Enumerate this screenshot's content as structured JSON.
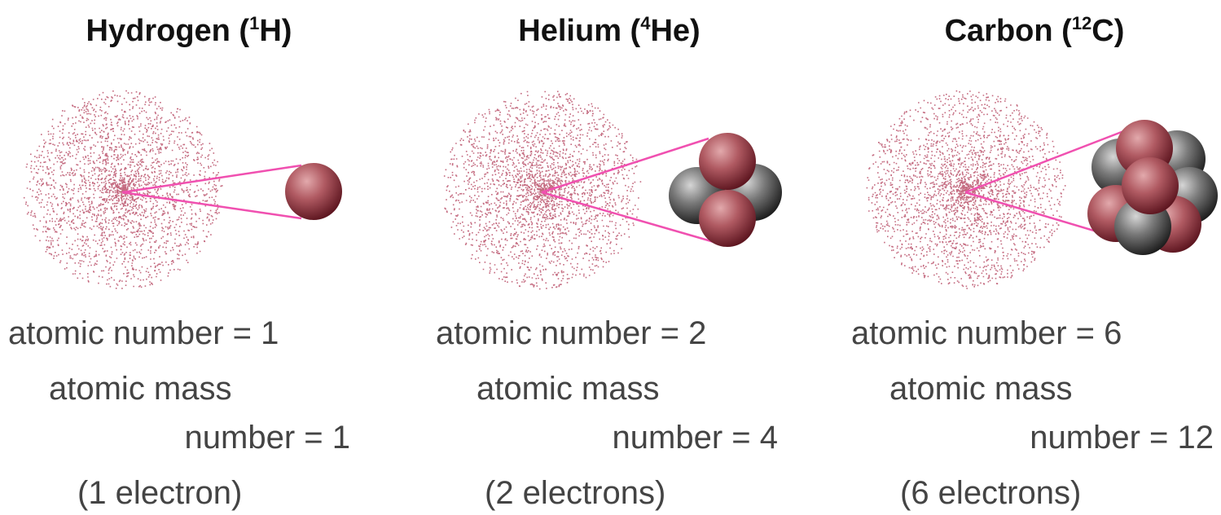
{
  "atoms": [
    {
      "title": {
        "name": "Hydrogen (",
        "mass": "1",
        "symbol": "H)"
      },
      "atomic_number": "atomic number = 1",
      "mass_label": "atomic mass",
      "mass_number": "number = 1",
      "electrons": "(1 electron)"
    },
    {
      "title": {
        "name": "Helium (",
        "mass": "4",
        "symbol": "He)"
      },
      "atomic_number": "atomic number = 2",
      "mass_label": "atomic mass",
      "mass_number": "number = 4",
      "electrons": "(2 electrons)"
    },
    {
      "title": {
        "name": "Carbon (",
        "mass": "12",
        "symbol": "C)"
      },
      "atomic_number": "atomic number = 6",
      "mass_label": "atomic mass",
      "mass_number": "number = 12",
      "electrons": "(6 electrons)"
    }
  ]
}
